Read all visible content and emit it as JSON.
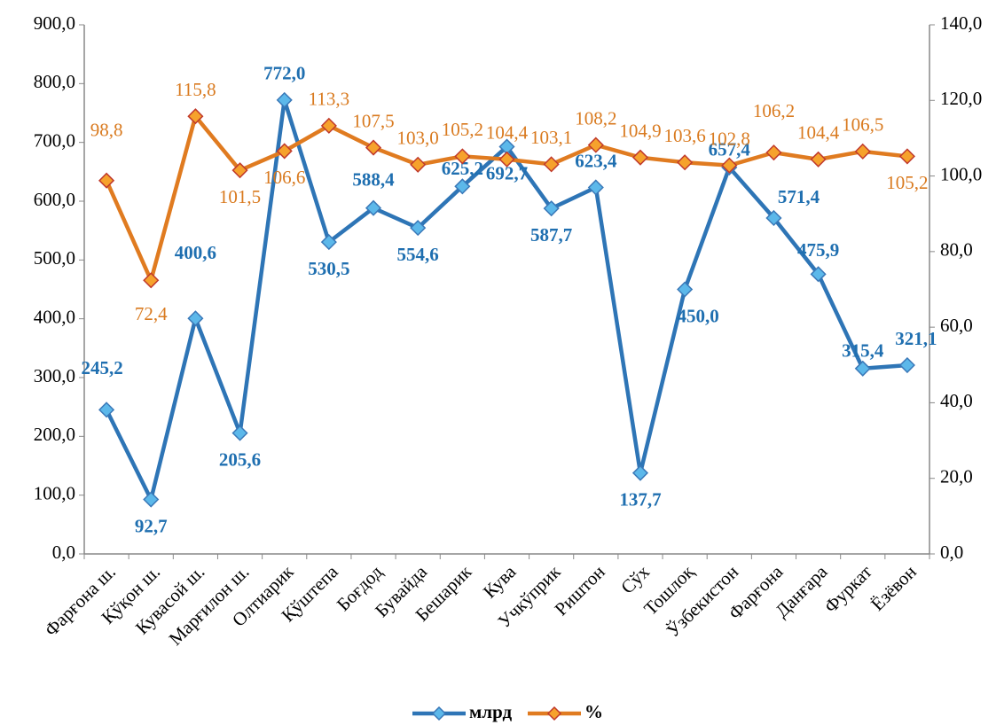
{
  "chart_data": {
    "type": "line",
    "categories": [
      "Фарғона ш.",
      "Қўқон ш.",
      "Кувасой ш.",
      "Марғилон ш.",
      "Олтиарик",
      "Қўштепа",
      "Боғдод",
      "Бувайда",
      "Бешарик",
      "Кува",
      "Учкўприк",
      "Риштон",
      "Сўх",
      "Тошлоқ",
      "Ўзбекистон",
      "Фарғона",
      "Данғара",
      "Фуркат",
      "Ёзёвон"
    ],
    "series": [
      {
        "name": "млрд",
        "color": "#2e75b6",
        "axis": "y",
        "values": [
          245.2,
          92.7,
          400.6,
          205.6,
          772.0,
          530.5,
          588.4,
          554.6,
          625.2,
          692.7,
          587.7,
          623.4,
          137.7,
          450.0,
          657.4,
          571.4,
          475.9,
          315.4,
          321.1
        ],
        "value_labels": [
          "245,2",
          "92,7",
          "400,6",
          "205,6",
          "772,0",
          "530,5",
          "588,4",
          "554,6",
          "625,2",
          "692,7",
          "587,7",
          "623,4",
          "137,7",
          "450,0",
          "657,4",
          "571,4",
          "475,9",
          "315,4",
          "321,1"
        ]
      },
      {
        "name": "%",
        "color": "#e07b20",
        "axis": "y2",
        "values": [
          98.8,
          72.4,
          115.8,
          101.5,
          106.6,
          113.3,
          107.5,
          103.0,
          105.2,
          104.4,
          103.1,
          108.2,
          104.9,
          103.6,
          102.8,
          106.2,
          104.4,
          106.5,
          105.2
        ],
        "value_labels": [
          "98,8",
          "72,4",
          "115,8",
          "101,5",
          "106,6",
          "113,3",
          "107,5",
          "103,0",
          "105,2",
          "104,4",
          "103,1",
          "108,2",
          "104,9",
          "103,6",
          "102,8",
          "106,2",
          "104,4",
          "106,5",
          "105,2"
        ]
      }
    ],
    "ylim": [
      0,
      900
    ],
    "yticks": [
      {
        "value": 0,
        "label": "0,0"
      },
      {
        "value": 100,
        "label": "100,0"
      },
      {
        "value": 200,
        "label": "200,0"
      },
      {
        "value": 300,
        "label": "300,0"
      },
      {
        "value": 400,
        "label": "400,0"
      },
      {
        "value": 500,
        "label": "500,0"
      },
      {
        "value": 600,
        "label": "600,0"
      },
      {
        "value": 700,
        "label": "700,0"
      },
      {
        "value": 800,
        "label": "800,0"
      },
      {
        "value": 900,
        "label": "900,0"
      }
    ],
    "y2lim": [
      0,
      140
    ],
    "y2ticks": [
      {
        "value": 0,
        "label": "0,0"
      },
      {
        "value": 20,
        "label": "20,0"
      },
      {
        "value": 40,
        "label": "40,0"
      },
      {
        "value": 60,
        "label": "60,0"
      },
      {
        "value": 80,
        "label": "80,0"
      },
      {
        "value": 100,
        "label": "100,0"
      },
      {
        "value": 120,
        "label": "120,0"
      },
      {
        "value": 140,
        "label": "140,0"
      }
    ],
    "legend": "bottom",
    "grid": false
  }
}
